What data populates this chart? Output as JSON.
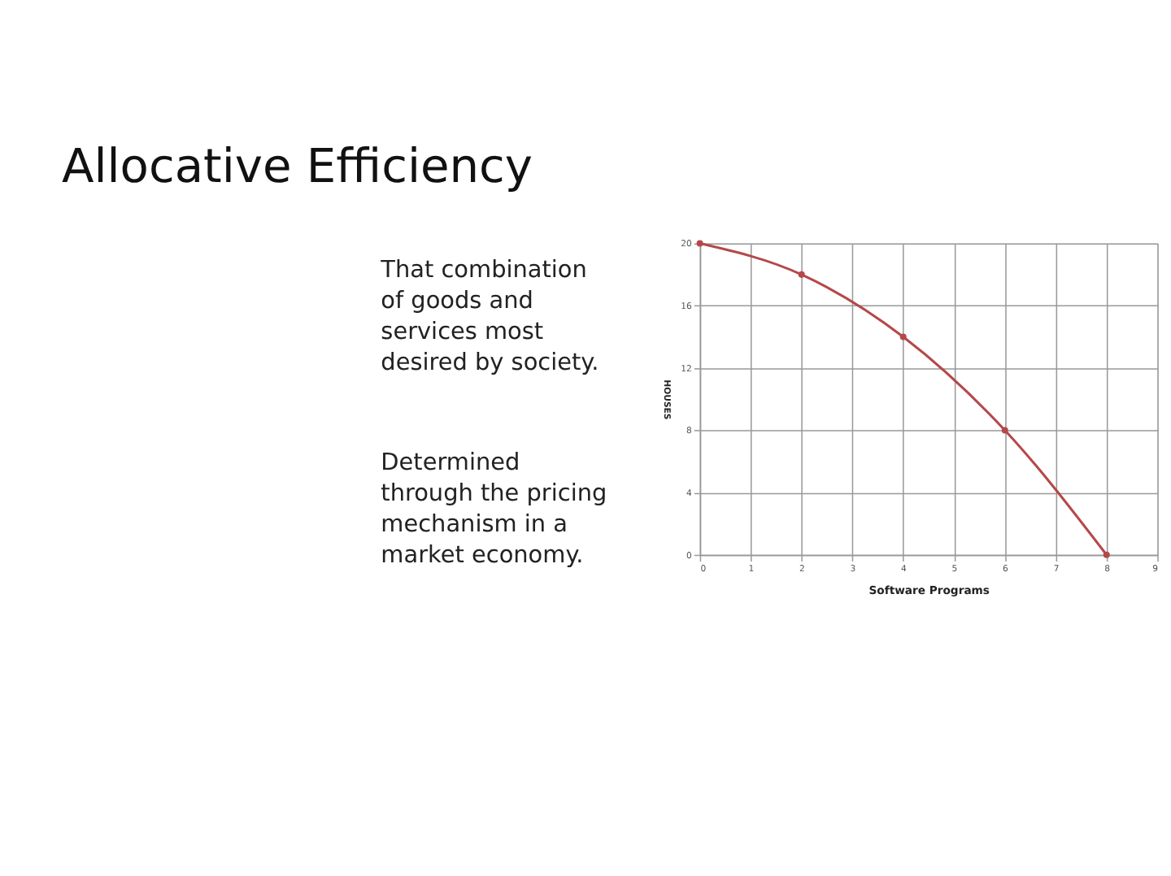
{
  "chart_data": {
    "type": "line",
    "title": "Allocative Efficiency",
    "xlabel": "Software Programs",
    "ylabel": "HOUSES",
    "x": [
      0,
      2,
      4,
      6,
      8
    ],
    "series": [
      {
        "color": "#b5484a",
        "values": [
          20,
          18,
          14,
          8,
          0
        ]
      }
    ],
    "xlim": [
      0,
      9
    ],
    "xticks": [
      0,
      1,
      2,
      3,
      4,
      5,
      6,
      7,
      8,
      9
    ],
    "ylim": [
      0,
      20
    ],
    "yticks": [
      0,
      4,
      8,
      12,
      16,
      20
    ],
    "grid": true,
    "marker": "circle",
    "line_style": "solid",
    "annotations": [
      "That combination\nof goods and\nservices most\ndesired by society.",
      "Determined\nthrough the pricing\nmechanism in a\nmarket economy."
    ]
  }
}
